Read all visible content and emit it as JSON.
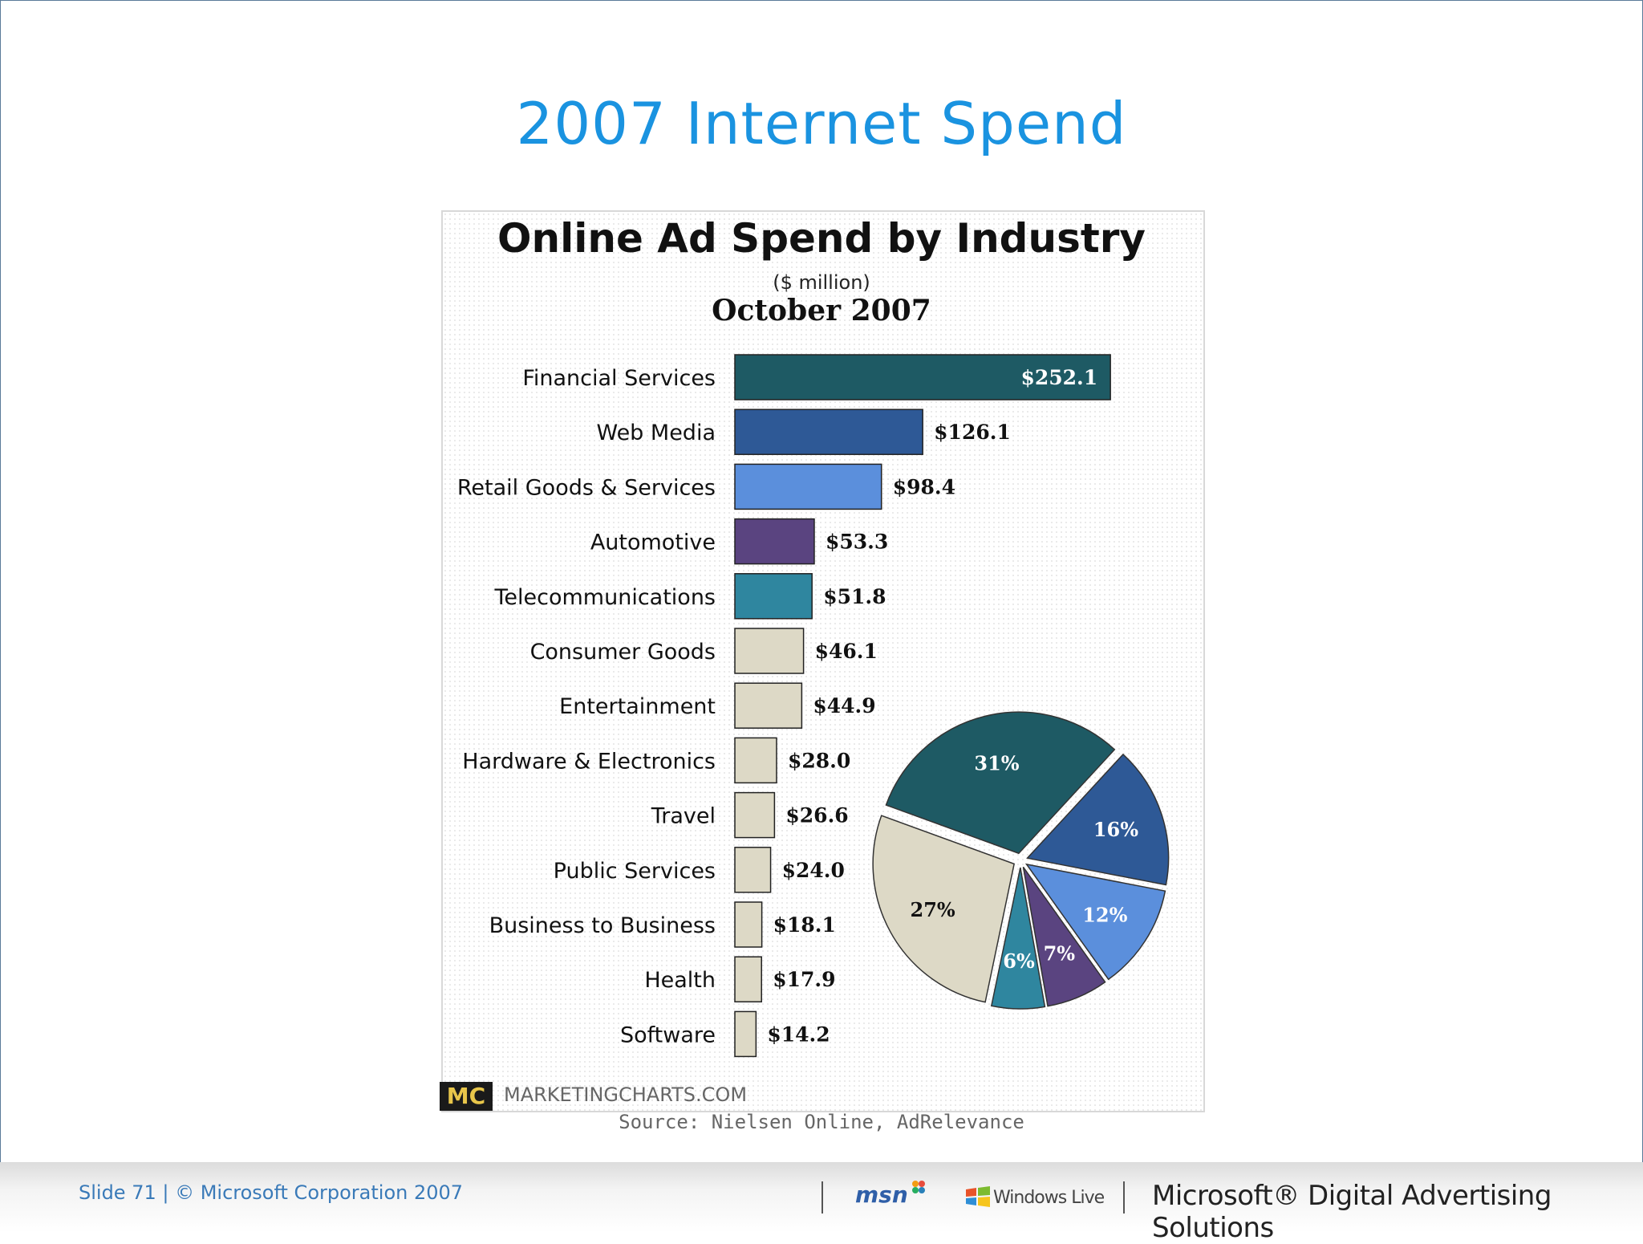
{
  "slide": {
    "title": "2007 Internet Spend",
    "footer_text": "Slide 71 | © Microsoft Corporation 2007",
    "msn_logo": "msn",
    "windows_live_logo": "Windows Live",
    "brand": "Microsoft® Digital Advertising Solutions"
  },
  "chart_data": {
    "type": "bar",
    "title": "Online Ad Spend by Industry",
    "subtitle": "($ million)",
    "period": "October 2007",
    "categories": [
      "Financial Services",
      "Web Media",
      "Retail Goods & Services",
      "Automotive",
      "Telecommunications",
      "Consumer Goods",
      "Entertainment",
      "Hardware & Electronics",
      "Travel",
      "Public Services",
      "Business to Business",
      "Health",
      "Software"
    ],
    "values": [
      252.1,
      126.1,
      98.4,
      53.3,
      51.8,
      46.1,
      44.9,
      28.0,
      26.6,
      24.0,
      18.1,
      17.9,
      14.2
    ],
    "value_labels": [
      "$252.1",
      "$126.1",
      "$98.4",
      "$53.3",
      "$51.8",
      "$46.1",
      "$44.9",
      "$28.0",
      "$26.6",
      "$24.0",
      "$18.1",
      "$17.9",
      "$14.2"
    ],
    "bar_colors": [
      "#1e5a64",
      "#2e5996",
      "#5b8fdc",
      "#5a4480",
      "#2f869f",
      "#ddd9c6",
      "#ddd9c6",
      "#ddd9c6",
      "#ddd9c6",
      "#ddd9c6",
      "#ddd9c6",
      "#ddd9c6",
      "#ddd9c6"
    ],
    "pie": {
      "type": "pie",
      "values": [
        31,
        16,
        12,
        7,
        6,
        27
      ],
      "labels": [
        "31%",
        "16%",
        "12%",
        "7%",
        "6%",
        "27%"
      ],
      "colors": [
        "#1e5a64",
        "#2e5996",
        "#5b8fdc",
        "#5a4480",
        "#2f869f",
        "#ddd9c6"
      ]
    },
    "logo": "MC",
    "site": "MARKETINGCHARTS.COM",
    "source": "Source: Nielsen Online, AdRelevance"
  }
}
